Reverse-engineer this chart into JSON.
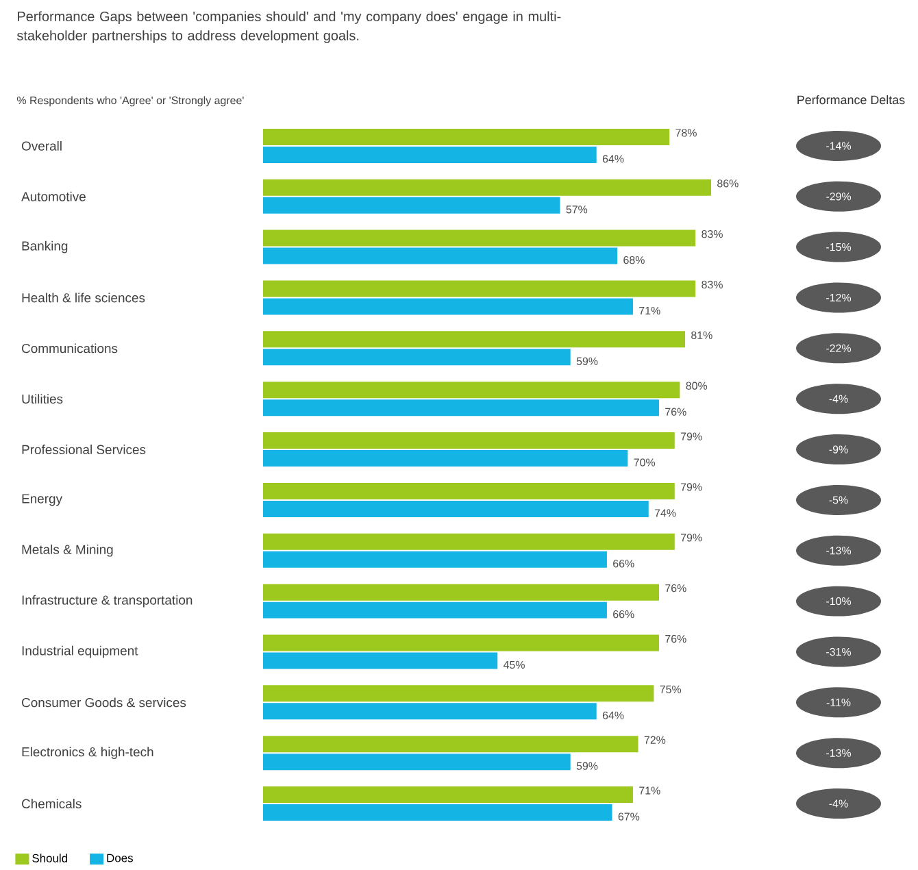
{
  "chart_data": {
    "type": "bar",
    "orientation": "horizontal",
    "title": "Performance Gaps between 'companies should' and 'my company does' engage in multi-stakeholder partnerships to address development goals.",
    "subtitle": "% Respondents who 'Agree' or 'Strongly agree'",
    "categories": [
      "Overall",
      "Automotive",
      "Banking",
      "Health & life sciences",
      "Communications",
      "Utilities",
      "Professional Services",
      "Energy",
      "Metals & Mining",
      "Infrastructure & transportation",
      "Industrial equipment",
      "Consumer Goods & services",
      "Electronics & high-tech",
      "Chemicals"
    ],
    "series": [
      {
        "name": "Should",
        "color": "#9dc81e",
        "values": [
          78,
          86,
          83,
          83,
          81,
          80,
          79,
          79,
          79,
          76,
          76,
          75,
          72,
          71
        ],
        "value_labels": [
          "78%",
          "86%",
          "83%",
          "83%",
          "81%",
          "80%",
          "79%",
          "79%",
          "79%",
          "76%",
          "76%",
          "75%",
          "72%",
          "71%"
        ]
      },
      {
        "name": "Does",
        "color": "#14b4e4",
        "values": [
          64,
          57,
          68,
          71,
          59,
          76,
          70,
          74,
          66,
          66,
          45,
          64,
          59,
          67
        ],
        "value_labels": [
          "64%",
          "57%",
          "68%",
          "71%",
          "59%",
          "76%",
          "70%",
          "74%",
          "66%",
          "66%",
          "45%",
          "64%",
          "59%",
          "67%"
        ]
      }
    ],
    "legend": "bottom left",
    "annotations": [
      "Performance Deltas",
      "-14%",
      "-29%",
      "-15%",
      "-12%",
      "-22%",
      "-4%",
      "-9%",
      "-5%",
      "-13%",
      "-10%",
      "-31%",
      "-11%",
      "-13%",
      "-4%"
    ]
  }
}
